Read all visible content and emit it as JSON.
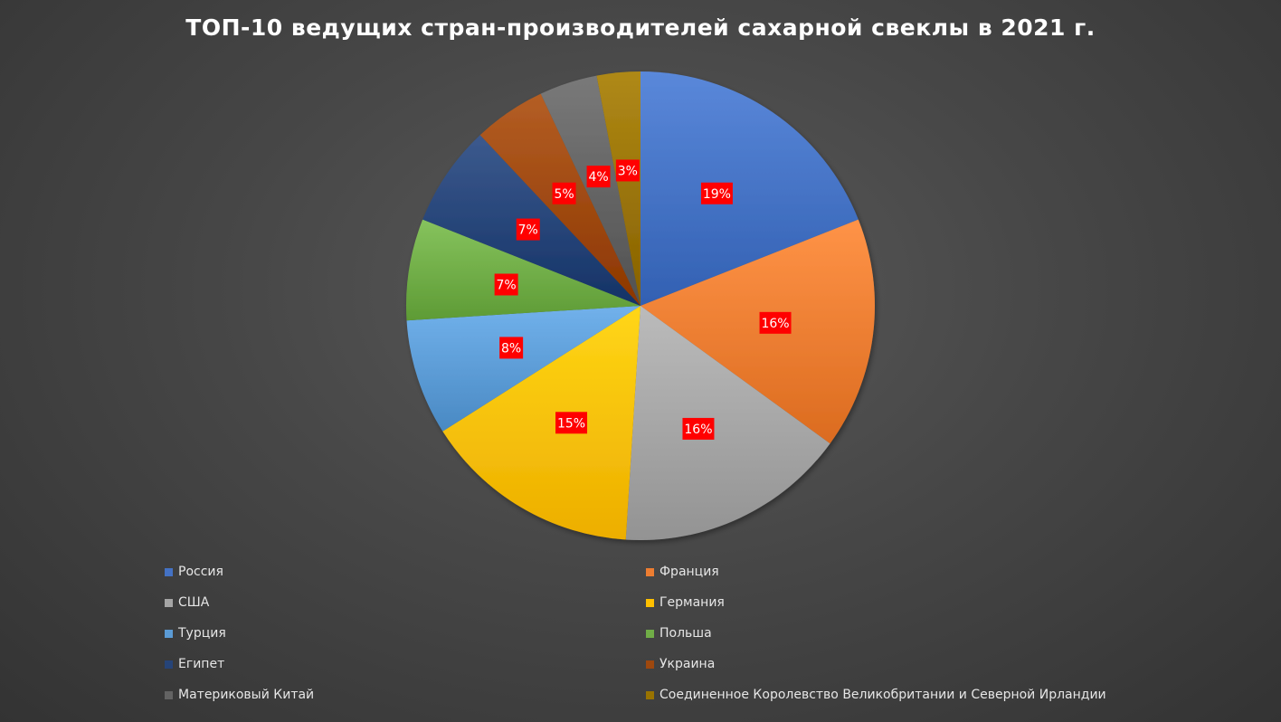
{
  "chart_data": {
    "type": "pie",
    "title": "ТОП-10 ведущих стран-производителей сахарной свеклы в 2021 г.",
    "categories": [
      "Россия",
      "Франция",
      "США",
      "Германия",
      "Турция",
      "Польша",
      "Египет",
      "Украина",
      "Материковый Китай",
      "Соединенное Королевство Великобритании и Северной Ирландии"
    ],
    "values": [
      19,
      16,
      16,
      15,
      8,
      7,
      7,
      5,
      4,
      3
    ],
    "data_labels": [
      "19%",
      "16%",
      "16%",
      "15%",
      "8%",
      "7%",
      "7%",
      "5%",
      "4%",
      "3%"
    ],
    "colors": [
      "#4472c4",
      "#ed7d31",
      "#a5a5a5",
      "#ffc000",
      "#5b9bd5",
      "#70ad47",
      "#264478",
      "#9e480e",
      "#636363",
      "#997300"
    ],
    "legend_position": "bottom",
    "start_angle_deg": 0,
    "direction": "clockwise"
  }
}
